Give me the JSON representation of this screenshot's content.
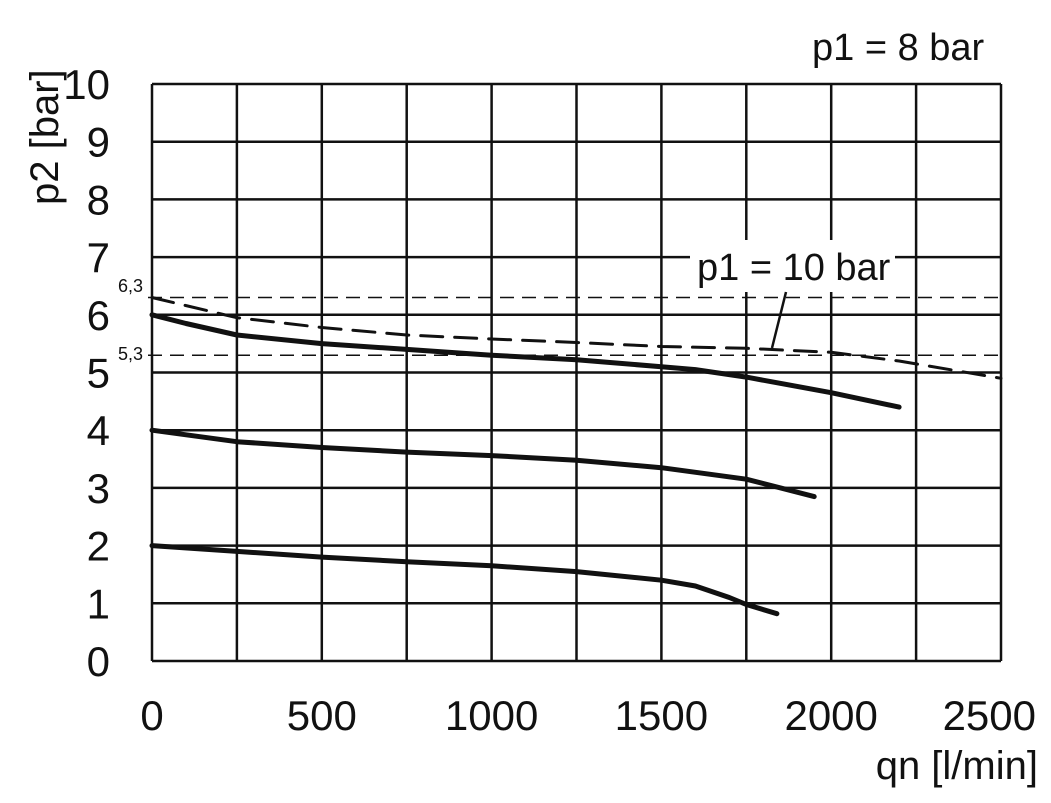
{
  "chart_data": {
    "type": "line",
    "title": "",
    "xlabel": "qn [l/min]",
    "ylabel": "p2 [bar]",
    "xlim": [
      0,
      2500
    ],
    "ylim": [
      0,
      10
    ],
    "x_ticks": [
      0,
      500,
      1000,
      1500,
      2000,
      2500
    ],
    "y_ticks": [
      0,
      1,
      2,
      3,
      4,
      5,
      6,
      7,
      8,
      9,
      10
    ],
    "grid": true,
    "annotations": {
      "p1_8": "p1 = 8 bar",
      "p1_10": "p1 = 10 bar",
      "ref_high": "6,3",
      "ref_low": "5,3"
    },
    "reference_lines": [
      {
        "label": "6,3",
        "y": 6.3
      },
      {
        "label": "5,3",
        "y": 5.3
      }
    ],
    "series": [
      {
        "style": "solid",
        "x": [
          0,
          100,
          250,
          500,
          750,
          1000,
          1250,
          1500,
          1600,
          1750,
          2000,
          2200
        ],
        "y": [
          6.0,
          5.85,
          5.65,
          5.5,
          5.4,
          5.3,
          5.22,
          5.1,
          5.05,
          4.92,
          4.65,
          4.4
        ]
      },
      {
        "style": "solid",
        "x": [
          0,
          250,
          500,
          750,
          1000,
          1250,
          1500,
          1750,
          1950
        ],
        "y": [
          4.0,
          3.8,
          3.7,
          3.62,
          3.56,
          3.48,
          3.35,
          3.15,
          2.85
        ]
      },
      {
        "style": "solid",
        "x": [
          0,
          250,
          500,
          750,
          1000,
          1250,
          1500,
          1600,
          1700,
          1750,
          1840
        ],
        "y": [
          2.0,
          1.9,
          1.8,
          1.72,
          1.65,
          1.55,
          1.4,
          1.3,
          1.1,
          0.98,
          0.82
        ]
      },
      {
        "style": "dashed",
        "x": [
          0,
          250,
          500,
          750,
          1000,
          1250,
          1500,
          1750,
          2000,
          2200,
          2500
        ],
        "y": [
          6.3,
          5.95,
          5.78,
          5.65,
          5.58,
          5.52,
          5.45,
          5.42,
          5.35,
          5.2,
          4.9
        ]
      }
    ]
  }
}
